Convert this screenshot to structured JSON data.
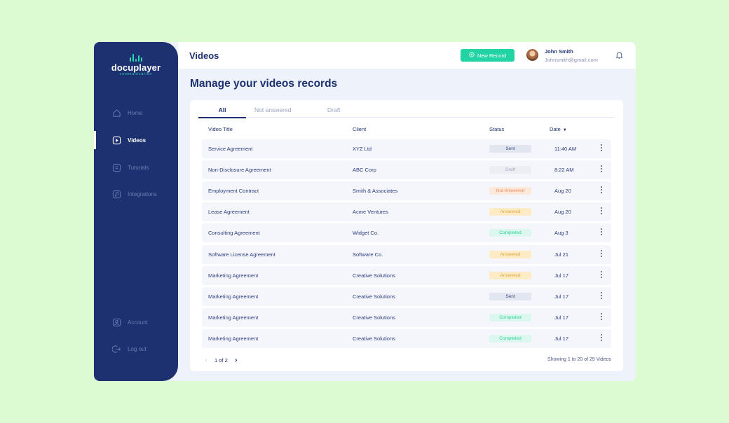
{
  "brand": {
    "name": "docuplayer",
    "sub": "communication"
  },
  "colors": {
    "sidebar": "#1d3170",
    "accent": "#22d3a3",
    "background": "#dcfbd2"
  },
  "sidebar": {
    "items": [
      {
        "label": "Home",
        "icon": "home-icon"
      },
      {
        "label": "Videos",
        "icon": "play-icon",
        "active": true
      },
      {
        "label": "Tutorials",
        "icon": "document-icon"
      },
      {
        "label": "Integrations",
        "icon": "music-icon"
      }
    ],
    "bottom": [
      {
        "label": "Account",
        "icon": "user-icon"
      },
      {
        "label": "Log out",
        "icon": "logout-icon"
      }
    ]
  },
  "header": {
    "title": "Videos",
    "new_record": "New Record",
    "user": {
      "name": "John Smith",
      "email": "Johnsmith@gmail.com"
    }
  },
  "main": {
    "title": "Manage your videos records",
    "tabs": [
      "All",
      "Not answered",
      "Draft"
    ],
    "columns": {
      "title": "Video Title",
      "client": "Client",
      "status": "Status",
      "date": "Date"
    },
    "rows": [
      {
        "title": "Service Agreement",
        "client": "XYZ Ltd",
        "status": "Sent",
        "date": "11:40 AM"
      },
      {
        "title": "Non-Disclosure Agreement",
        "client": "ABC Corp",
        "status": "Draft",
        "date": "8:22 AM"
      },
      {
        "title": "Employment Contract",
        "client": "Smith & Associates",
        "status": "Not Answered",
        "date": "Aug 20"
      },
      {
        "title": "Lease Agreement",
        "client": "Acme Ventures",
        "status": "Answered",
        "date": "Aug 20"
      },
      {
        "title": "Consulting Agreement",
        "client": "Widget Co.",
        "status": "Completed",
        "date": "Aug 3"
      },
      {
        "title": "Software License Agreement",
        "client": "Software Co.",
        "status": "Answered",
        "date": "Jul 21"
      },
      {
        "title": "Marketing Agreement",
        "client": "Creative Solutions",
        "status": "Answered",
        "date": "Jul 17"
      },
      {
        "title": "Marketing Agreement",
        "client": "Creative Solutions",
        "status": "Sent",
        "date": "Jul 17"
      },
      {
        "title": "Marketing Agreement",
        "client": "Creative Solutions",
        "status": "Completed",
        "date": "Jul 17"
      },
      {
        "title": "Marketing Agreement",
        "client": "Creative Solutions",
        "status": "Completed",
        "date": "Jul 17"
      }
    ],
    "status_colors": {
      "Sent": {
        "bg": "#e2e6f1",
        "fg": "#3c4a7d"
      },
      "Draft": {
        "bg": "#eceef3",
        "fg": "#a3a9bd"
      },
      "Not Answered": {
        "bg": "#fde8dc",
        "fg": "#f08a5c"
      },
      "Answered": {
        "bg": "#fcebc5",
        "fg": "#e0a642"
      },
      "Completed": {
        "bg": "#dcf8ee",
        "fg": "#2fcf96"
      }
    },
    "pagination": {
      "label": "1 of 2",
      "showing": "Showing 1 to 20 of 25 Videos"
    }
  }
}
